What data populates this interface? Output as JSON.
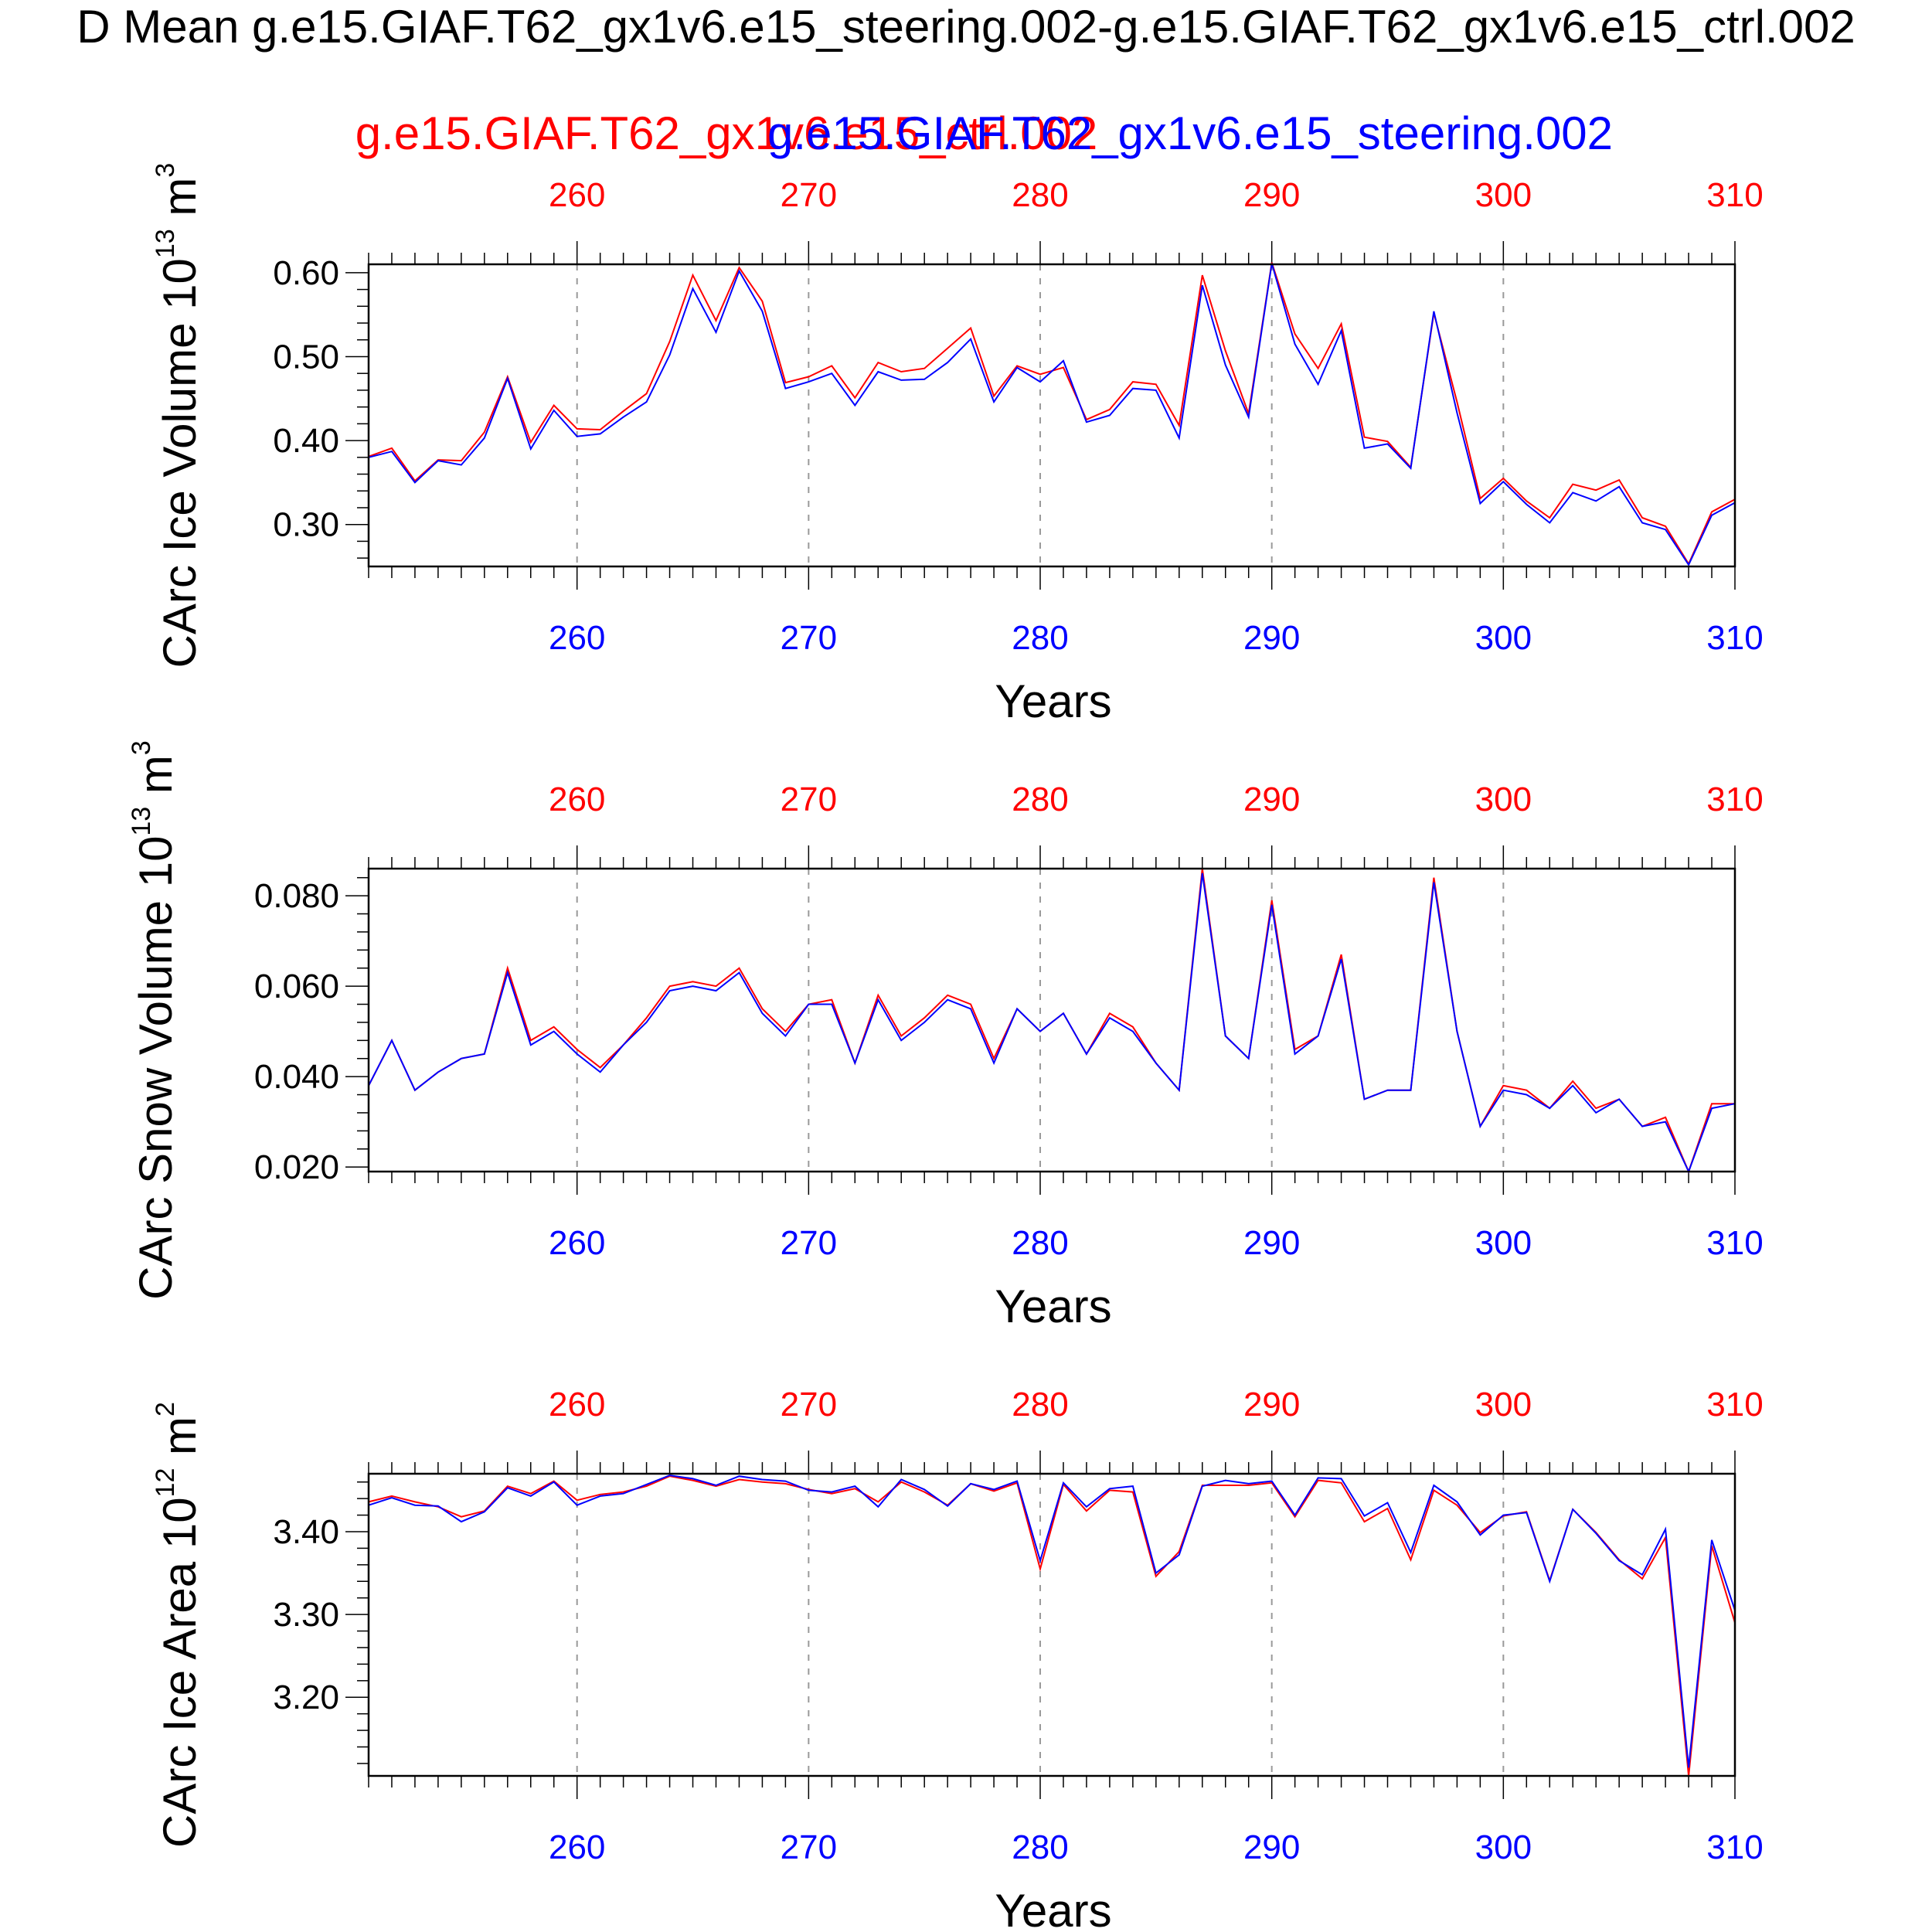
{
  "title": "D Mean g.e15.GIAF.T62_gx1v6.e15_steering.002-g.e15.GIAF.T62_gx1v6.e15_ctrl.002",
  "legend": {
    "red": "g.e15.GIAF.T62_gx1v6.e15_ctrl.002",
    "blue": "g.e15.GIAF.T62_gx1v6.e15_steering.002"
  },
  "colors": {
    "ctrl": "#ff0000",
    "steering": "#0000ff",
    "axis": "#000000",
    "grid": "#999999"
  },
  "chart_data": [
    {
      "type": "line",
      "ylabel": "CArc Ice Volume 10",
      "ylabel_exp": "13",
      "ylabel_unit": " m",
      "ylabel_unit_exp": "3",
      "xlabel": "Years",
      "xlim": [
        251,
        310
      ],
      "ylim": [
        0.25,
        0.61
      ],
      "yticks": [
        0.3,
        0.4,
        0.5,
        0.6
      ],
      "ytick_labels": [
        "0.30",
        "0.40",
        "0.50",
        "0.60"
      ],
      "xticks": [
        260,
        270,
        280,
        290,
        300,
        310
      ],
      "xtick_labels": [
        "260",
        "270",
        "280",
        "290",
        "300",
        "310"
      ],
      "grid": "vertical dashed",
      "x_start": 251,
      "series": [
        {
          "name": "g.e15.GIAF.T62_gx1v6.e15_ctrl.002",
          "color": "#ff0000",
          "values": [
            0.381,
            0.391,
            0.352,
            0.377,
            0.376,
            0.41,
            0.476,
            0.398,
            0.442,
            0.414,
            0.413,
            0.435,
            0.456,
            0.518,
            0.597,
            0.543,
            0.606,
            0.566,
            0.469,
            0.476,
            0.489,
            0.451,
            0.493,
            0.482,
            0.486,
            0.51,
            0.534,
            0.453,
            0.489,
            0.479,
            0.487,
            0.425,
            0.437,
            0.47,
            0.467,
            0.418,
            0.597,
            0.507,
            0.432,
            0.612,
            0.527,
            0.486,
            0.539,
            0.404,
            0.399,
            0.368,
            0.552,
            0.446,
            0.331,
            0.355,
            0.328,
            0.308,
            0.348,
            0.341,
            0.353,
            0.308,
            0.298,
            0.253,
            0.315,
            0.33
          ]
        },
        {
          "name": "g.e15.GIAF.T62_gx1v6.e15_steering.002",
          "color": "#0000ff",
          "values": [
            0.38,
            0.387,
            0.35,
            0.376,
            0.371,
            0.403,
            0.474,
            0.39,
            0.436,
            0.405,
            0.408,
            0.428,
            0.446,
            0.502,
            0.581,
            0.529,
            0.602,
            0.554,
            0.462,
            0.47,
            0.48,
            0.442,
            0.482,
            0.472,
            0.473,
            0.493,
            0.521,
            0.446,
            0.487,
            0.47,
            0.495,
            0.422,
            0.43,
            0.462,
            0.46,
            0.403,
            0.585,
            0.49,
            0.428,
            0.611,
            0.515,
            0.467,
            0.531,
            0.391,
            0.396,
            0.367,
            0.554,
            0.433,
            0.325,
            0.351,
            0.324,
            0.302,
            0.338,
            0.328,
            0.345,
            0.302,
            0.294,
            0.252,
            0.311,
            0.326
          ]
        }
      ]
    },
    {
      "type": "line",
      "ylabel": "CArc Snow Volume 10",
      "ylabel_exp": "13",
      "ylabel_unit": " m",
      "ylabel_unit_exp": "3",
      "xlabel": "Years",
      "xlim": [
        251,
        310
      ],
      "ylim": [
        0.019,
        0.086
      ],
      "yticks": [
        0.02,
        0.04,
        0.06,
        0.08
      ],
      "ytick_labels": [
        "0.020",
        "0.040",
        "0.060",
        "0.080"
      ],
      "xticks": [
        260,
        270,
        280,
        290,
        300,
        310
      ],
      "xtick_labels": [
        "260",
        "270",
        "280",
        "290",
        "300",
        "310"
      ],
      "grid": "vertical dashed",
      "x_start": 251,
      "series": [
        {
          "name": "g.e15.GIAF.T62_gx1v6.e15_ctrl.002",
          "color": "#ff0000",
          "values": [
            0.038,
            0.048,
            0.037,
            0.041,
            0.044,
            0.045,
            0.064,
            0.048,
            0.051,
            0.046,
            0.042,
            0.047,
            0.053,
            0.06,
            0.061,
            0.06,
            0.064,
            0.055,
            0.05,
            0.056,
            0.057,
            0.043,
            0.058,
            0.049,
            0.053,
            0.058,
            0.056,
            0.044,
            0.055,
            0.05,
            0.054,
            0.045,
            0.054,
            0.051,
            0.043,
            0.037,
            0.086,
            0.049,
            0.044,
            0.079,
            0.046,
            0.049,
            0.067,
            0.035,
            0.037,
            0.037,
            0.084,
            0.05,
            0.029,
            0.038,
            0.037,
            0.033,
            0.039,
            0.033,
            0.035,
            0.029,
            0.031,
            0.019,
            0.034,
            0.034
          ]
        },
        {
          "name": "g.e15.GIAF.T62_gx1v6.e15_steering.002",
          "color": "#0000ff",
          "values": [
            0.038,
            0.048,
            0.037,
            0.041,
            0.044,
            0.045,
            0.063,
            0.047,
            0.05,
            0.045,
            0.041,
            0.047,
            0.052,
            0.059,
            0.06,
            0.059,
            0.063,
            0.054,
            0.049,
            0.056,
            0.056,
            0.043,
            0.057,
            0.048,
            0.052,
            0.057,
            0.055,
            0.043,
            0.055,
            0.05,
            0.054,
            0.045,
            0.053,
            0.05,
            0.043,
            0.037,
            0.085,
            0.049,
            0.044,
            0.078,
            0.045,
            0.049,
            0.066,
            0.035,
            0.037,
            0.037,
            0.083,
            0.05,
            0.029,
            0.037,
            0.036,
            0.033,
            0.038,
            0.032,
            0.035,
            0.029,
            0.03,
            0.019,
            0.033,
            0.034
          ]
        }
      ]
    },
    {
      "type": "line",
      "ylabel": "CArc Ice Area 10",
      "ylabel_exp": "12",
      "ylabel_unit": " m",
      "ylabel_unit_exp": "2",
      "xlabel": "Years",
      "xlim": [
        251,
        310
      ],
      "ylim": [
        3.105,
        3.47
      ],
      "yticks": [
        3.2,
        3.3,
        3.4
      ],
      "ytick_labels": [
        "3.20",
        "3.30",
        "3.40"
      ],
      "xticks": [
        260,
        270,
        280,
        290,
        300,
        310
      ],
      "xtick_labels": [
        "260",
        "270",
        "280",
        "290",
        "300",
        "310"
      ],
      "grid": "vertical dashed",
      "x_start": 251,
      "series": [
        {
          "name": "g.e15.GIAF.T62_gx1v6.e15_ctrl.002",
          "color": "#ff0000",
          "values": [
            3.436,
            3.443,
            3.436,
            3.43,
            3.418,
            3.425,
            3.455,
            3.446,
            3.461,
            3.438,
            3.445,
            3.448,
            3.455,
            3.467,
            3.462,
            3.455,
            3.463,
            3.46,
            3.458,
            3.451,
            3.446,
            3.452,
            3.436,
            3.46,
            3.448,
            3.432,
            3.458,
            3.449,
            3.459,
            3.355,
            3.457,
            3.425,
            3.45,
            3.448,
            3.346,
            3.376,
            3.456,
            3.456,
            3.456,
            3.459,
            3.418,
            3.462,
            3.459,
            3.412,
            3.428,
            3.366,
            3.45,
            3.432,
            3.399,
            3.419,
            3.424,
            3.341,
            3.427,
            3.399,
            3.366,
            3.343,
            3.393,
            3.105,
            3.383,
            3.29
          ]
        },
        {
          "name": "g.e15.GIAF.T62_gx1v6.e15_steering.002",
          "color": "#0000ff",
          "values": [
            3.432,
            3.441,
            3.432,
            3.431,
            3.412,
            3.424,
            3.453,
            3.443,
            3.46,
            3.432,
            3.443,
            3.446,
            3.457,
            3.468,
            3.464,
            3.456,
            3.467,
            3.463,
            3.461,
            3.45,
            3.448,
            3.455,
            3.43,
            3.463,
            3.451,
            3.431,
            3.458,
            3.451,
            3.461,
            3.365,
            3.459,
            3.43,
            3.452,
            3.455,
            3.35,
            3.372,
            3.455,
            3.462,
            3.458,
            3.461,
            3.42,
            3.465,
            3.464,
            3.419,
            3.435,
            3.375,
            3.456,
            3.436,
            3.396,
            3.42,
            3.423,
            3.34,
            3.427,
            3.398,
            3.365,
            3.348,
            3.403,
            3.115,
            3.39,
            3.305
          ]
        }
      ]
    }
  ]
}
